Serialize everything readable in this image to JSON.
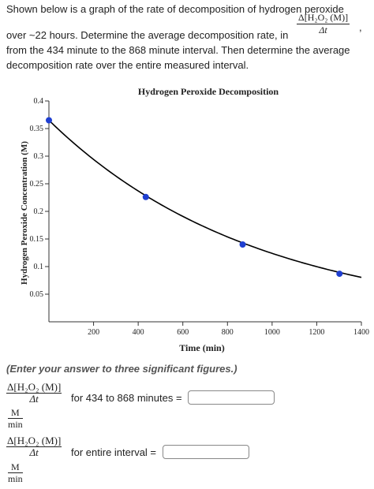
{
  "question": {
    "line1": "Shown below is a graph of the rate of decomposition of hydrogen peroxide",
    "line2": "over ~22 hours. Determine the average decomposition rate, in",
    "line3": "from the 434 minute to the 868 minute interval. Then determine the average",
    "line4": "decomposition rate over the entire measured interval.",
    "rate_numerator": "Δ[H₂O₂ (M)]",
    "rate_denominator": "Δt",
    "trailing_comma": ","
  },
  "chart_data": {
    "type": "line",
    "title": "Hydrogen Peroxide Decomposition",
    "xlabel": "Time (min)",
    "ylabel": "Hydrogen Peroxide Concentration (M)",
    "xlim": [
      0,
      1400
    ],
    "ylim": [
      0.0,
      0.4
    ],
    "x_ticks": [
      200,
      400,
      600,
      800,
      1000,
      1200,
      1400
    ],
    "y_ticks": [
      0.05,
      0.1,
      0.15,
      0.2,
      0.25,
      0.3,
      0.35,
      0.4
    ],
    "y_tick_labels": [
      "0.05",
      "0.1",
      "0.15",
      "0.2",
      "0.25",
      "0.3",
      "0.35",
      "0.4"
    ],
    "curve": {
      "initial_concentration": 0.365,
      "rate_constant_per_min": 0.00108,
      "x_end": 1400
    },
    "points": [
      {
        "x": 0,
        "y": 0.365
      },
      {
        "x": 434,
        "y": 0.226
      },
      {
        "x": 868,
        "y": 0.14
      },
      {
        "x": 1302,
        "y": 0.087
      }
    ],
    "line_color": "#000000",
    "point_color": "#1f3fd1",
    "grid": false
  },
  "instructions": "(Enter your answer to three significant figures.)",
  "answers": [
    {
      "numerator": "Δ[H₂O₂ (M)]",
      "denominator": "Δt",
      "label": "for 434 to 868 minutes =",
      "unit_numerator": "M",
      "unit_denominator": "min",
      "value": ""
    },
    {
      "numerator": "Δ[H₂O₂ (M)]",
      "denominator": "Δt",
      "label": "for entire interval =",
      "unit_numerator": "M",
      "unit_denominator": "min",
      "value": ""
    }
  ]
}
